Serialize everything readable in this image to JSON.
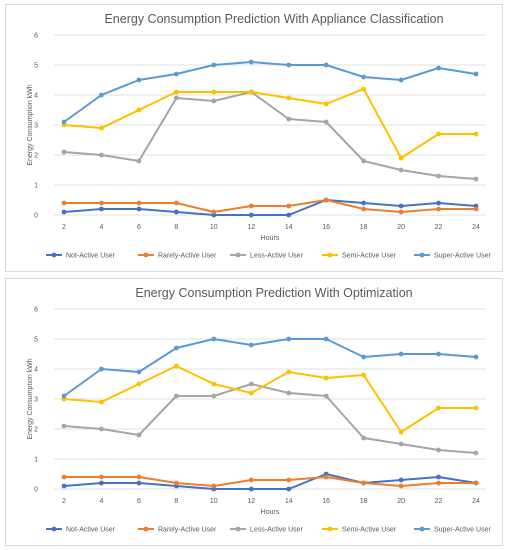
{
  "chart_data": [
    {
      "type": "line",
      "title": "Energy Consumption Prediction With Appliance Classification",
      "xlabel": "Hours",
      "ylabel": "Energy Consumption kWh",
      "x": [
        2,
        4,
        6,
        8,
        10,
        12,
        14,
        16,
        18,
        20,
        22,
        24
      ],
      "ylim": [
        0,
        6
      ],
      "yticks": [
        0,
        1,
        2,
        3,
        4,
        5,
        6
      ],
      "grid": true,
      "legend_position": "bottom",
      "series": [
        {
          "name": "Not-Active User",
          "color": "#4472C4",
          "values": [
            0.1,
            0.2,
            0.2,
            0.1,
            0.0,
            0.0,
            0.0,
            0.5,
            0.4,
            0.3,
            0.4,
            0.3
          ]
        },
        {
          "name": "Rarely-Active User",
          "color": "#ED7D31",
          "values": [
            0.4,
            0.4,
            0.4,
            0.4,
            0.1,
            0.3,
            0.3,
            0.5,
            0.2,
            0.1,
            0.2,
            0.2
          ]
        },
        {
          "name": "Less-Active User",
          "color": "#A5A5A5",
          "values": [
            2.1,
            2.0,
            1.8,
            3.9,
            3.8,
            4.1,
            3.2,
            3.1,
            1.8,
            1.5,
            1.3,
            1.2
          ]
        },
        {
          "name": "Semi-Active User",
          "color": "#FFC000",
          "values": [
            3.0,
            2.9,
            3.5,
            4.1,
            4.1,
            4.1,
            3.9,
            3.7,
            4.2,
            1.9,
            2.7,
            2.7
          ]
        },
        {
          "name": "Super-Active User",
          "color": "#5B9BD5",
          "values": [
            3.1,
            4.0,
            4.5,
            4.7,
            5.0,
            5.1,
            5.0,
            5.0,
            4.6,
            4.5,
            4.9,
            4.7
          ]
        }
      ]
    },
    {
      "type": "line",
      "title": "Energy Consumption  Prediction With Optimization",
      "xlabel": "Hours",
      "ylabel": "Energy Consumption kWh",
      "x": [
        2,
        4,
        6,
        8,
        10,
        12,
        14,
        16,
        18,
        20,
        22,
        24
      ],
      "ylim": [
        0,
        6
      ],
      "yticks": [
        0,
        1,
        2,
        3,
        4,
        5,
        6
      ],
      "grid": true,
      "legend_position": "bottom",
      "series": [
        {
          "name": "Not-Active User",
          "color": "#4472C4",
          "values": [
            0.1,
            0.2,
            0.2,
            0.1,
            0.0,
            0.0,
            0.0,
            0.5,
            0.2,
            0.3,
            0.4,
            0.2
          ]
        },
        {
          "name": "Rarely-Active User",
          "color": "#ED7D31",
          "values": [
            0.4,
            0.4,
            0.4,
            0.2,
            0.1,
            0.3,
            0.3,
            0.4,
            0.2,
            0.1,
            0.2,
            0.2
          ]
        },
        {
          "name": "Less-Active User",
          "color": "#A5A5A5",
          "values": [
            2.1,
            2.0,
            1.8,
            3.1,
            3.1,
            3.5,
            3.2,
            3.1,
            1.7,
            1.5,
            1.3,
            1.2
          ]
        },
        {
          "name": "Semi-Active User",
          "color": "#FFC000",
          "values": [
            3.0,
            2.9,
            3.5,
            4.1,
            3.5,
            3.2,
            3.9,
            3.7,
            3.8,
            1.9,
            2.7,
            2.7
          ]
        },
        {
          "name": "Super-Active User",
          "color": "#5B9BD5",
          "values": [
            3.1,
            4.0,
            3.9,
            4.7,
            5.0,
            4.8,
            5.0,
            5.0,
            4.4,
            4.5,
            4.5,
            4.4
          ]
        }
      ]
    }
  ]
}
